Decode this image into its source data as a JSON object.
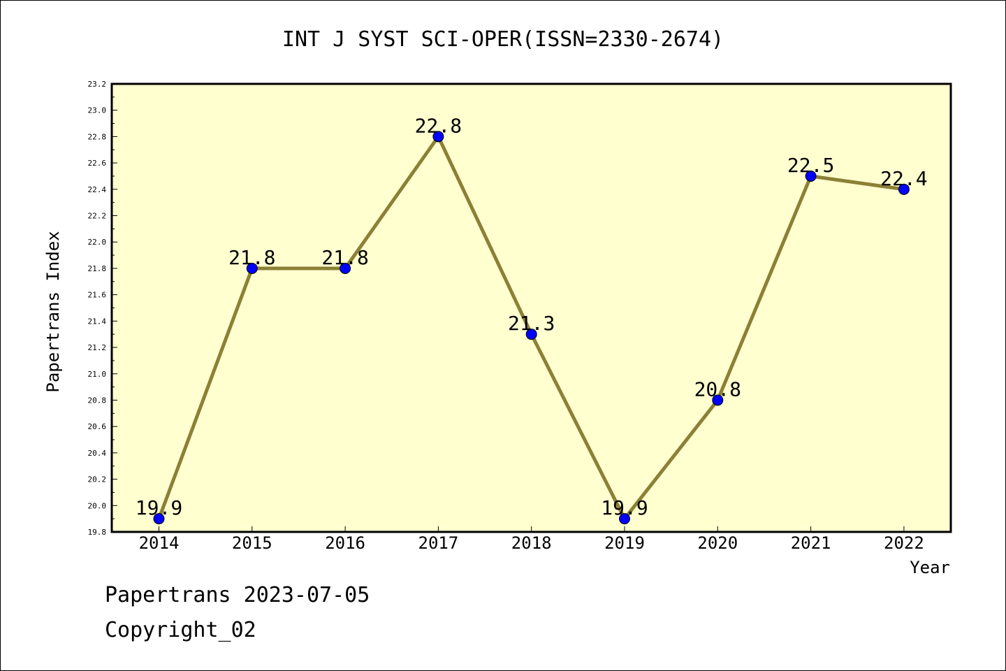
{
  "chart_data": {
    "type": "line",
    "title": "INT J SYST SCI-OPER(ISSN=2330-2674)",
    "xlabel": "Year",
    "ylabel": "Papertrans Index",
    "x": [
      "2014",
      "2015",
      "2016",
      "2017",
      "2018",
      "2019",
      "2020",
      "2021",
      "2022"
    ],
    "series": [
      {
        "values": [
          19.9,
          21.8,
          21.8,
          22.8,
          21.3,
          19.9,
          20.8,
          22.5,
          22.4
        ],
        "data_labels": [
          "19.9",
          "21.8",
          "21.8",
          "22.8",
          "21.3",
          "19.9",
          "20.8",
          "22.5",
          "22.4"
        ]
      }
    ],
    "ylim": [
      19.8,
      23.2
    ],
    "yticks": [
      "19.8",
      "20.0",
      "20.2",
      "20.4",
      "20.6",
      "20.8",
      "21.0",
      "21.2",
      "21.4",
      "21.6",
      "21.8",
      "22.0",
      "22.2",
      "22.4",
      "22.6",
      "22.8",
      "23.0",
      "23.2"
    ],
    "grid": false,
    "colors": {
      "plot_background": "#ffffd0",
      "line": "#8b8035",
      "marker": "#0000ff"
    }
  },
  "footer": {
    "line1": "Papertrans 2023-07-05",
    "line2": "Copyright_02"
  }
}
